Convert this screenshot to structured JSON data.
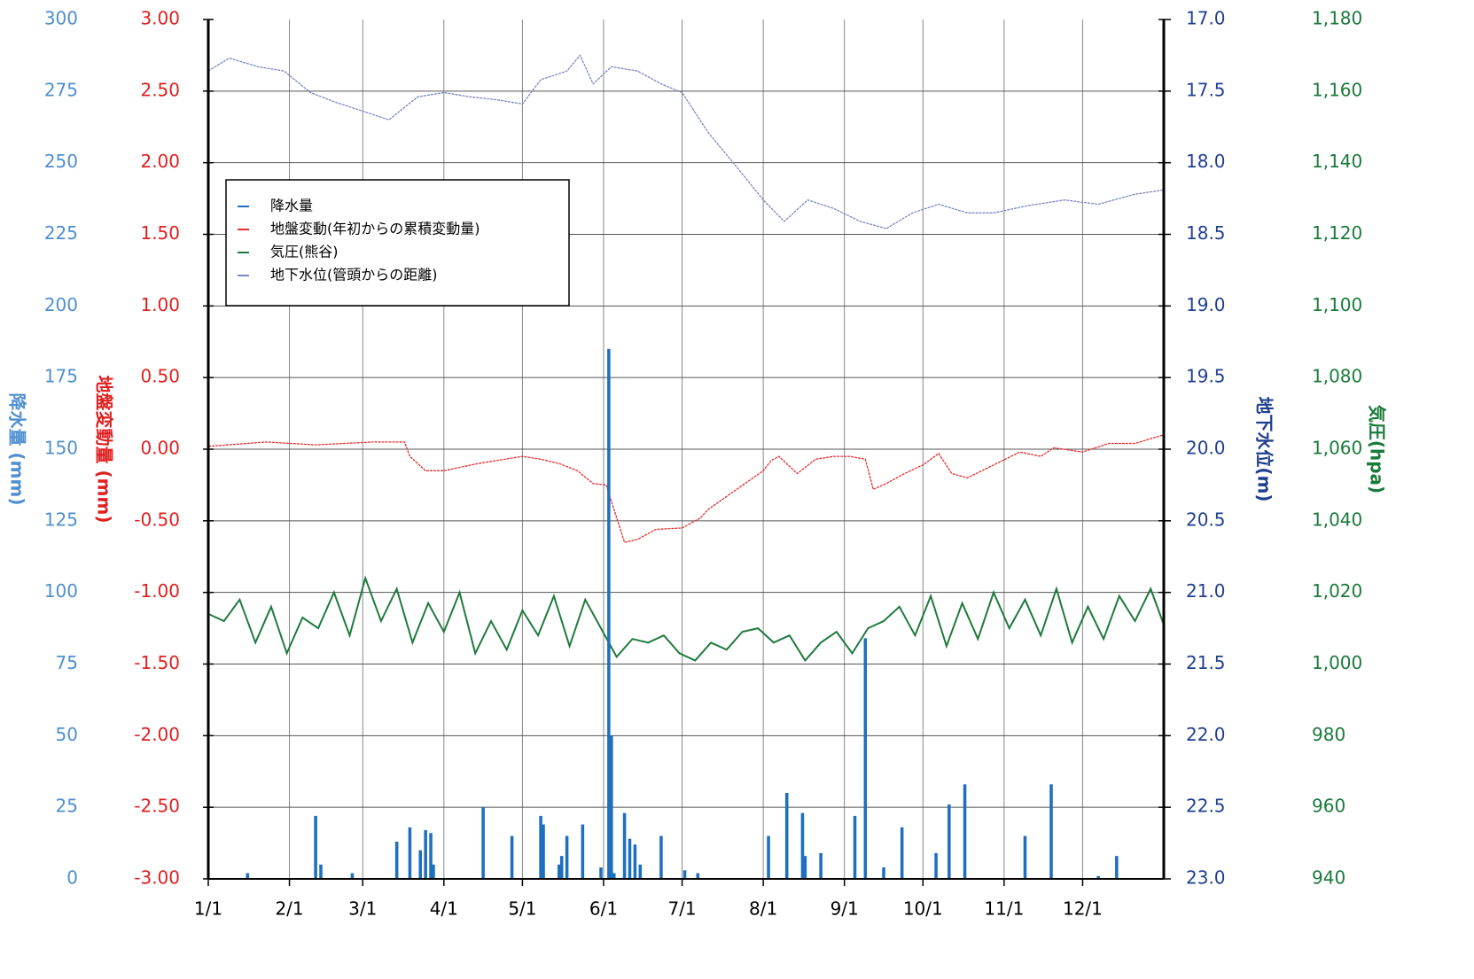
{
  "chart_data": {
    "type": "combo",
    "xlim": [
      1,
      366
    ],
    "xticks": [
      {
        "value": 1,
        "label": "1/1"
      },
      {
        "value": 32,
        "label": "2/1"
      },
      {
        "value": 60,
        "label": "3/1"
      },
      {
        "value": 91,
        "label": "4/1"
      },
      {
        "value": 121,
        "label": "5/1"
      },
      {
        "value": 152,
        "label": "6/1"
      },
      {
        "value": 182,
        "label": "7/1"
      },
      {
        "value": 213,
        "label": "8/1"
      },
      {
        "value": 244,
        "label": "9/1"
      },
      {
        "value": 274,
        "label": "10/1"
      },
      {
        "value": 305,
        "label": "11/1"
      },
      {
        "value": 335,
        "label": "12/1"
      }
    ],
    "grid": true,
    "axes": [
      {
        "title": "降水量 (mm)",
        "color": "#4f8fd0",
        "lim": [
          0,
          300
        ],
        "ticks": [
          0,
          25,
          50,
          75,
          100,
          125,
          150,
          175,
          200,
          225,
          250,
          275,
          300
        ]
      },
      {
        "title": "地盤変動量 (mm)",
        "color": "#e02020",
        "lim": [
          -3,
          3
        ],
        "ticks": [
          {
            "value": -3,
            "label": "-3.00"
          },
          {
            "value": -2.5,
            "label": "-2.50"
          },
          {
            "value": -2,
            "label": "-2.00"
          },
          {
            "value": -1.5,
            "label": "-1.50"
          },
          {
            "value": -1,
            "label": "-1.00"
          },
          {
            "value": -0.5,
            "label": "-0.50"
          },
          {
            "value": 0,
            "label": "0.00"
          },
          {
            "value": 0.5,
            "label": "0.50"
          },
          {
            "value": 1,
            "label": "1.00"
          },
          {
            "value": 1.5,
            "label": "1.50"
          },
          {
            "value": 2,
            "label": "2.00"
          },
          {
            "value": 2.5,
            "label": "2.50"
          },
          {
            "value": 3,
            "label": "3.00"
          }
        ]
      },
      {
        "title": "地下水位(m)",
        "color": "#1f3f8f",
        "lim": [
          23,
          17
        ],
        "ticks": [
          {
            "value": 23,
            "label": "23.0"
          },
          22.5,
          {
            "value": 22,
            "label": "22.0"
          },
          21.5,
          {
            "value": 21,
            "label": "21.0"
          },
          20.5,
          {
            "value": 20,
            "label": "20.0"
          },
          19.5,
          {
            "value": 19,
            "label": "19.0"
          },
          18.5,
          {
            "value": 18,
            "label": "18.0"
          },
          17.5,
          {
            "value": 17,
            "label": "17.0"
          }
        ]
      },
      {
        "title": "気圧(hpa)",
        "color": "#1a7a3a",
        "lim": [
          940,
          1180
        ],
        "ticks": [
          940,
          960,
          980,
          {
            "value": 1000,
            "label": "1,000"
          },
          {
            "value": 1020,
            "label": "1,020"
          },
          {
            "value": 1040,
            "label": "1,040"
          },
          {
            "value": 1060,
            "label": "1,060"
          },
          {
            "value": 1080,
            "label": "1,080"
          },
          {
            "value": 1100,
            "label": "1,100"
          },
          {
            "value": 1120,
            "label": "1,120"
          },
          {
            "value": 1140,
            "label": "1,140"
          },
          {
            "value": 1160,
            "label": "1,160"
          },
          {
            "value": 1180,
            "label": "1,180"
          }
        ]
      }
    ],
    "series": [
      {
        "name": "降水量",
        "type": "bar",
        "axis": 0,
        "color": "#1f6fbf",
        "x": [
          16,
          42,
          44,
          56,
          73,
          78,
          82,
          84,
          86,
          87,
          106,
          117,
          128,
          129,
          135,
          136,
          138,
          144,
          151,
          154,
          155,
          156,
          160,
          162,
          164,
          166,
          174,
          183,
          188,
          215,
          222,
          228,
          229,
          235,
          248,
          252,
          259,
          266,
          279,
          284,
          290,
          313,
          323,
          341,
          348
        ],
        "values": [
          2,
          22,
          5,
          2,
          13,
          18,
          10,
          17,
          16,
          5,
          25,
          15,
          22,
          19,
          5,
          8,
          15,
          19,
          4,
          185,
          50,
          2,
          23,
          14,
          12,
          5,
          15,
          3,
          2,
          15,
          30,
          23,
          8,
          9,
          22,
          84,
          4,
          18,
          9,
          26,
          33,
          15,
          33,
          1,
          8
        ]
      },
      {
        "name": "地盤変動(年初からの累積変動量)",
        "type": "line",
        "axis": 1,
        "color": "#e03030",
        "x": [
          1,
          23,
          42,
          64,
          76,
          78,
          84,
          91,
          104,
          111,
          121,
          128,
          135,
          142,
          148,
          153,
          160,
          165,
          172,
          182,
          189,
          192,
          199,
          206,
          213,
          216,
          219,
          226,
          233,
          240,
          246,
          252,
          255,
          260,
          267,
          274,
          280,
          285,
          291,
          301,
          311,
          319,
          324,
          335,
          345,
          355,
          366
        ],
        "values": [
          0.02,
          0.05,
          0.03,
          0.05,
          0.05,
          -0.05,
          -0.15,
          -0.15,
          -0.1,
          -0.08,
          -0.05,
          -0.07,
          -0.1,
          -0.15,
          -0.24,
          -0.25,
          -0.65,
          -0.63,
          -0.56,
          -0.55,
          -0.48,
          -0.42,
          -0.33,
          -0.24,
          -0.15,
          -0.08,
          -0.05,
          -0.17,
          -0.07,
          -0.05,
          -0.05,
          -0.07,
          -0.28,
          -0.24,
          -0.17,
          -0.11,
          -0.03,
          -0.17,
          -0.2,
          -0.11,
          -0.02,
          -0.05,
          0.01,
          -0.02,
          0.04,
          0.04,
          0.1
        ]
      },
      {
        "name": "気圧(熊谷)",
        "type": "line",
        "axis": 3,
        "color": "#1e7a3c",
        "x": [
          1,
          7,
          13,
          19,
          25,
          31,
          37,
          43,
          49,
          55,
          61,
          67,
          73,
          79,
          85,
          91,
          97,
          103,
          109,
          115,
          121,
          127,
          133,
          139,
          145,
          151,
          157,
          163,
          169,
          175,
          181,
          187,
          193,
          199,
          205,
          211,
          217,
          223,
          229,
          235,
          241,
          247,
          253,
          259,
          265,
          271,
          277,
          283,
          289,
          295,
          301,
          307,
          313,
          319,
          325,
          331,
          337,
          343,
          349,
          355,
          361,
          366
        ],
        "values": [
          1014,
          1012,
          1018,
          1006,
          1016,
          1003,
          1013,
          1010,
          1020,
          1008,
          1024,
          1012,
          1021,
          1006,
          1017,
          1009,
          1020,
          1003,
          1012,
          1004,
          1015,
          1008,
          1019,
          1005,
          1018,
          1010,
          1002,
          1007,
          1006,
          1008,
          1003,
          1001,
          1006,
          1004,
          1009,
          1010,
          1006,
          1008,
          1001,
          1006,
          1009,
          1003,
          1010,
          1012,
          1016,
          1008,
          1019,
          1005,
          1017,
          1007,
          1020,
          1010,
          1018,
          1008,
          1021,
          1006,
          1016,
          1007,
          1019,
          1012,
          1021,
          1011
        ]
      },
      {
        "name": "地下水位(管頭からの距離)",
        "type": "line",
        "axis": 2,
        "color": "#7b86c4",
        "x": [
          1,
          9,
          20,
          30,
          40,
          50,
          60,
          70,
          81,
          91,
          101,
          111,
          121,
          128,
          138,
          143,
          148,
          155,
          165,
          174,
          182,
          192,
          202,
          213,
          221,
          230,
          240,
          250,
          260,
          270,
          280,
          291,
          301,
          314,
          328,
          341,
          355,
          366
        ],
        "values": [
          17.36,
          17.27,
          17.33,
          17.36,
          17.51,
          17.58,
          17.64,
          17.7,
          17.54,
          17.51,
          17.54,
          17.56,
          17.59,
          17.42,
          17.36,
          17.25,
          17.45,
          17.33,
          17.36,
          17.45,
          17.51,
          17.79,
          18.01,
          18.26,
          18.41,
          18.26,
          18.32,
          18.41,
          18.46,
          18.35,
          18.29,
          18.35,
          18.35,
          18.3,
          18.26,
          18.29,
          18.22,
          18.19
        ]
      }
    ]
  }
}
